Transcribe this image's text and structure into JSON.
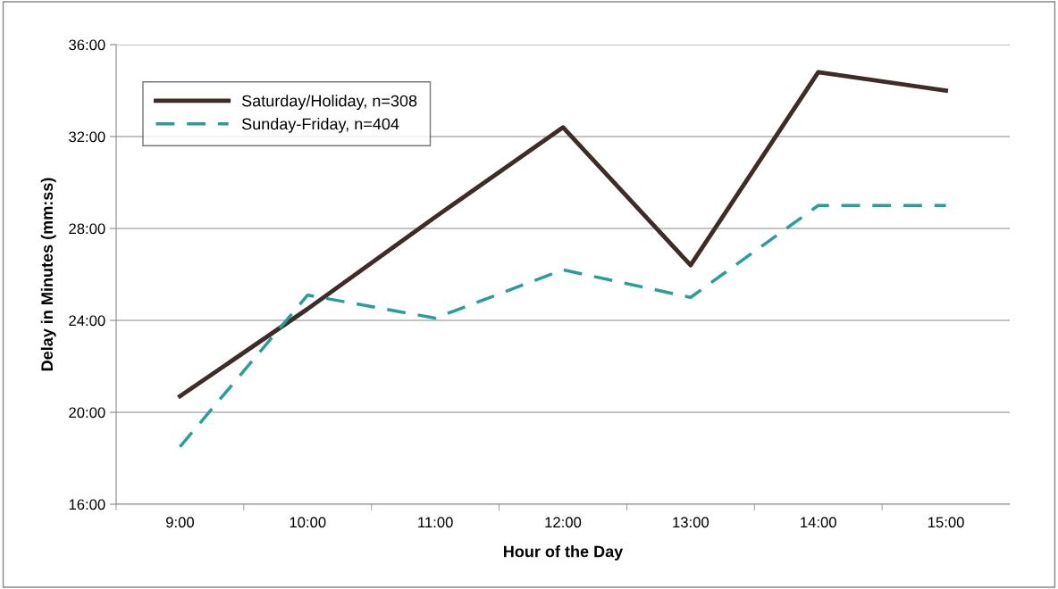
{
  "chart_data": {
    "type": "line",
    "xlabel": "Hour of the Day",
    "ylabel": "Delay in Minutes (mm:ss)",
    "categories": [
      "9:00",
      "10:00",
      "11:00",
      "12:00",
      "13:00",
      "14:00",
      "15:00"
    ],
    "series": [
      {
        "name": "Saturday/Holiday, n=308",
        "color": "#3e2c28",
        "line_style": "solid",
        "values": [
          20.7,
          24.5,
          28.5,
          32.4,
          26.4,
          34.8,
          34.0
        ]
      },
      {
        "name": "Sunday-Friday, n=404",
        "color": "#2a9d99",
        "line_style": "dashed",
        "values": [
          18.5,
          25.1,
          24.1,
          26.2,
          25.0,
          29.0,
          29.0
        ]
      }
    ],
    "ylim": [
      16,
      36
    ],
    "yticks": [
      {
        "value": 16,
        "label": "16:00"
      },
      {
        "value": 20,
        "label": "20:00"
      },
      {
        "value": 24,
        "label": "24:00"
      },
      {
        "value": 28,
        "label": "28:00"
      },
      {
        "value": 32,
        "label": "32:00"
      },
      {
        "value": 36,
        "label": "36:00"
      }
    ],
    "grid": "y",
    "legend": "top left",
    "marker": "none"
  }
}
